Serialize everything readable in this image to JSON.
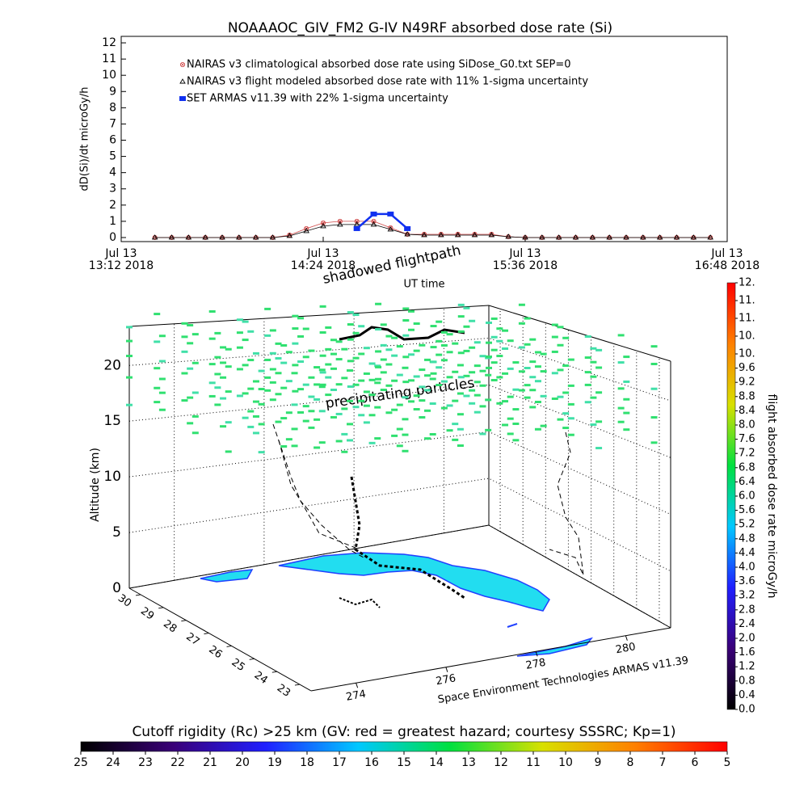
{
  "chart_data": [
    {
      "type": "line",
      "title": "NOAAAOC_GIV_FM2 G-IV    N49RF  absorbed dose rate (Si)",
      "ylabel": "dD(Si)/dt microGy/h",
      "xlabel": "UT time",
      "x": [
        "2018-07-13 13:24",
        "2018-07-13 13:30",
        "2018-07-13 13:36",
        "2018-07-13 13:42",
        "2018-07-13 13:48",
        "2018-07-13 13:54",
        "2018-07-13 14:00",
        "2018-07-13 14:06",
        "2018-07-13 14:12",
        "2018-07-13 14:18",
        "2018-07-13 14:24",
        "2018-07-13 14:30",
        "2018-07-13 14:36",
        "2018-07-13 14:42",
        "2018-07-13 14:48",
        "2018-07-13 14:54",
        "2018-07-13 15:00",
        "2018-07-13 15:06",
        "2018-07-13 15:12",
        "2018-07-13 15:18",
        "2018-07-13 15:24",
        "2018-07-13 15:30",
        "2018-07-13 15:36",
        "2018-07-13 15:42",
        "2018-07-13 15:48",
        "2018-07-13 15:54",
        "2018-07-13 16:00",
        "2018-07-13 16:06",
        "2018-07-13 16:12",
        "2018-07-13 16:18",
        "2018-07-13 16:24",
        "2018-07-13 16:30",
        "2018-07-13 16:36",
        "2018-07-13 16:42"
      ],
      "xlim": [
        "2018-07-13 13:12",
        "2018-07-13 16:48"
      ],
      "xticks": [
        {
          "value": "2018-07-13 13:12",
          "label": "Jul 13\n13:12 2018"
        },
        {
          "value": "2018-07-13 14:24",
          "label": "Jul 13\n14:24 2018"
        },
        {
          "value": "2018-07-13 15:36",
          "label": "Jul 13\n15:36 2018"
        },
        {
          "value": "2018-07-13 16:48",
          "label": "Jul 13\n16:48 2018"
        }
      ],
      "ylim": [
        -0.25,
        12.4
      ],
      "yticks": [
        0,
        1,
        2,
        3,
        4,
        5,
        6,
        7,
        8,
        9,
        10,
        11,
        12
      ],
      "series": [
        {
          "name": "NAIRAS v3 climatological absorbed dose rate using SiDose_G0.txt SEP=0",
          "color": "#d04848",
          "marker": "circle-x",
          "values": [
            0,
            0,
            0,
            0,
            0,
            0,
            0,
            0,
            0.15,
            0.55,
            0.9,
            1.0,
            1.0,
            1.0,
            0.6,
            0.2,
            0.2,
            0.2,
            0.2,
            0.2,
            0.2,
            0.05,
            0,
            0,
            0,
            0,
            0,
            0,
            0,
            0,
            0,
            0,
            0,
            0
          ]
        },
        {
          "name": "NAIRAS v3 flight modeled absorbed dose rate with 11% 1-sigma uncertainty",
          "color": "#000000",
          "marker": "triangle",
          "values": [
            0,
            0,
            0,
            0,
            0,
            0,
            0,
            0,
            0.1,
            0.4,
            0.7,
            0.8,
            0.8,
            0.8,
            0.5,
            0.2,
            0.15,
            0.15,
            0.15,
            0.15,
            0.15,
            0.05,
            0,
            0,
            0,
            0,
            0,
            0,
            0,
            0,
            0,
            0,
            0,
            0
          ]
        },
        {
          "name": "SET ARMAS v11.39 with 22% 1-sigma uncertainty",
          "color": "#1030f0",
          "marker": "dash",
          "values": [
            null,
            null,
            null,
            null,
            null,
            null,
            null,
            null,
            null,
            null,
            null,
            null,
            0.55,
            1.45,
            1.45,
            0.55,
            null,
            null,
            null,
            null,
            null,
            null,
            null,
            null,
            null,
            null,
            null,
            null,
            null,
            null,
            null,
            null,
            null,
            null
          ]
        }
      ]
    },
    {
      "type": "scatter3d",
      "zlabel": "Altitude (km)",
      "zlim": [
        0,
        23.5
      ],
      "zticks": [
        0,
        5,
        10,
        15,
        20
      ],
      "xlim": [
        273,
        281
      ],
      "xticks": [
        274,
        276,
        278,
        280
      ],
      "ylim": [
        30.5,
        22.5
      ],
      "yticks": [
        30,
        29,
        28,
        27,
        26,
        25,
        24,
        23
      ],
      "annotations": [
        "shadowed flightpath",
        "precipitating particles",
        "Space Environment Technologies ARMAS v11.39"
      ],
      "colormap": [
        "#000000",
        "#3a0078",
        "#2020ff",
        "#00c8ff",
        "#00e040",
        "#d8e000",
        "#ff8000",
        "#ff0000"
      ],
      "colorbar": {
        "label": "flight absorbed dose rate microGy/h",
        "lim": [
          0,
          12
        ],
        "ticks": [
          {
            "value": 0,
            "label": "0.0"
          },
          0.4,
          0.8,
          1.2,
          1.6,
          {
            "value": 2,
            "label": "2.0"
          },
          2.4,
          2.8,
          3.2,
          3.6,
          {
            "value": 4,
            "label": "4.0"
          },
          4.4,
          4.8,
          5.2,
          5.6,
          {
            "value": 6,
            "label": "6.0"
          },
          6.4,
          6.8,
          7.2,
          7.6,
          {
            "value": 8,
            "label": "8.0"
          },
          8.4,
          8.8,
          9.2,
          9.6,
          {
            "value": 10,
            "label": "10."
          },
          {
            "value": 10.5,
            "label": "10."
          },
          {
            "value": 11,
            "label": "11."
          },
          {
            "value": 11.5,
            "label": "11."
          },
          {
            "value": 12,
            "label": "12."
          }
        ]
      },
      "colorbar2": {
        "title": "Cutoff rigidity (Rc) >25 km (GV: red = greatest hazard; courtesy SSSRC; Kp=1)",
        "lim": [
          25,
          5
        ],
        "ticks": [
          25,
          24,
          23,
          22,
          21,
          20,
          19,
          18,
          17,
          16,
          15,
          14,
          13,
          12,
          11,
          10,
          9,
          8,
          7,
          6,
          5
        ]
      }
    }
  ]
}
